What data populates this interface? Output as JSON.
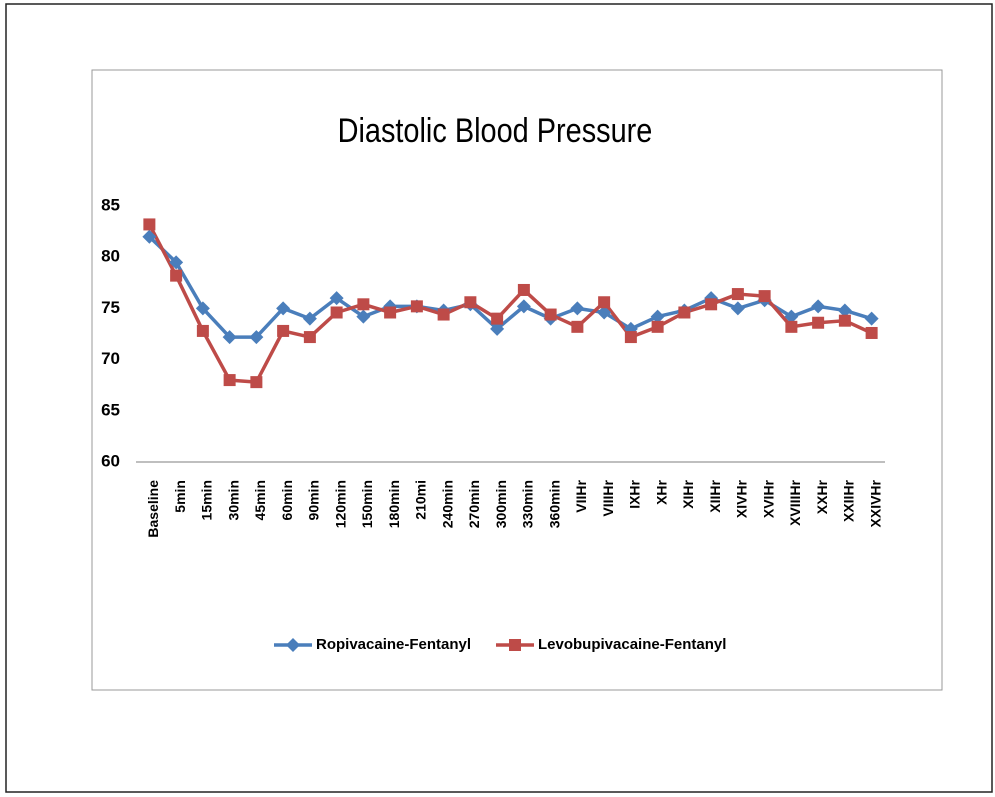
{
  "chart_data": {
    "type": "line",
    "title": "Diastolic Blood Pressure",
    "categories": [
      "Baseline",
      "5min",
      "15min",
      "30min",
      "45min",
      "60min",
      "90min",
      "120min",
      "150min",
      "180min",
      "210mi",
      "240min",
      "270min",
      "300min",
      "330min",
      "360min",
      "VIIHr",
      "VIIIHr",
      "IXHr",
      "XHr",
      "XIHr",
      "XIIHr",
      "XIVHr",
      "XVIHr",
      "XVIIIHr",
      "XXHr",
      "XXIIHr",
      "XXIVHr"
    ],
    "series": [
      {
        "name": "Ropivacaine-Fentanyl",
        "color": "#4a7ebb",
        "marker": "diamond",
        "values": [
          82,
          79.5,
          75,
          72.2,
          72.2,
          75,
          74,
          76,
          74.2,
          75.2,
          75.2,
          74.8,
          75.4,
          73,
          75.2,
          74,
          75,
          74.6,
          73,
          74.2,
          74.8,
          76,
          75,
          75.8,
          74.2,
          75.2,
          74.8,
          74
        ]
      },
      {
        "name": "Levobupivacaine-Fentanyl",
        "color": "#be4b48",
        "marker": "square",
        "values": [
          83.2,
          78.2,
          72.8,
          68,
          67.8,
          72.8,
          72.2,
          74.6,
          75.4,
          74.6,
          75.2,
          74.4,
          75.6,
          74,
          76.8,
          74.4,
          73.2,
          75.6,
          72.2,
          73.2,
          74.6,
          75.4,
          76.4,
          76.2,
          73.2,
          73.6,
          73.8,
          72.6
        ]
      }
    ],
    "ylim": [
      60,
      85
    ],
    "yticks": [
      60,
      65,
      70,
      75,
      80,
      85
    ],
    "grid": false,
    "legend": "bottom"
  }
}
